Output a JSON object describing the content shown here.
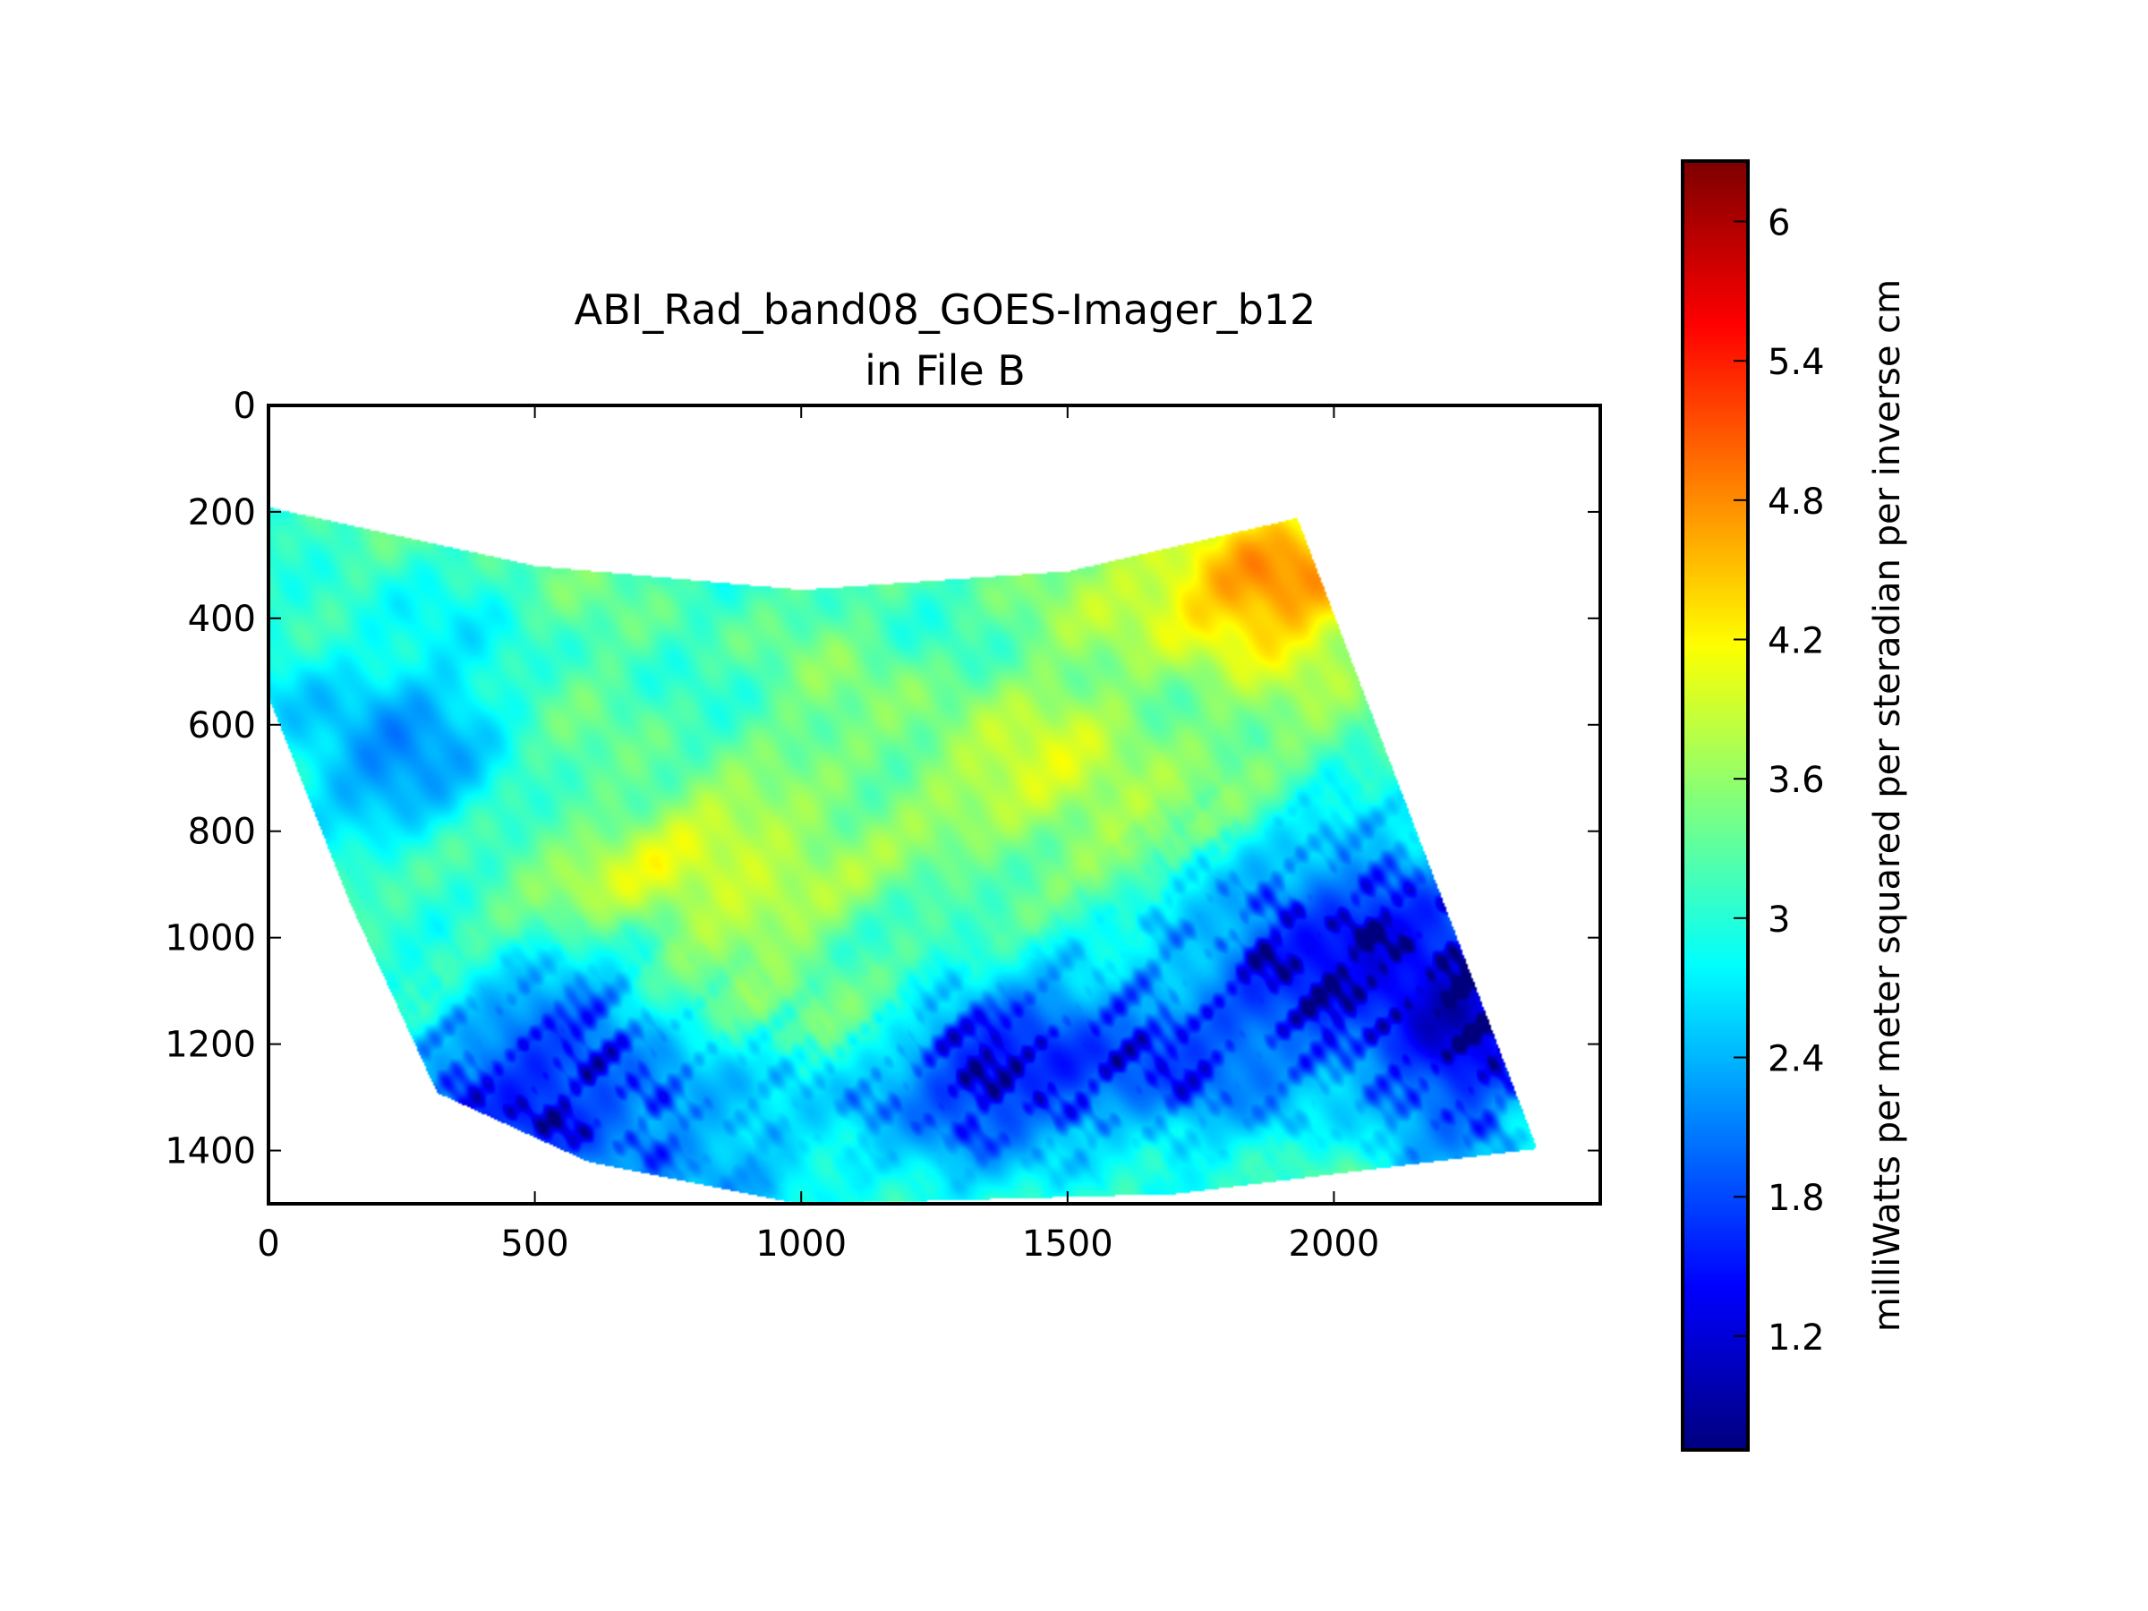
{
  "chart_data": {
    "type": "heatmap",
    "title": "ABI_Rad_band08_GOES-Imager_b12",
    "subtitle": "in File B",
    "xlabel": "",
    "ylabel": "",
    "xlim": [
      0,
      2500
    ],
    "ylim": [
      1500,
      0
    ],
    "y_inverted": true,
    "xticks": [
      0,
      500,
      1000,
      1500,
      2000
    ],
    "xtick_labels": [
      "0",
      "500",
      "1000",
      "1500",
      "2000"
    ],
    "yticks": [
      0,
      200,
      400,
      600,
      800,
      1000,
      1200,
      1400
    ],
    "ytick_labels": [
      "0",
      "200",
      "400",
      "600",
      "800",
      "1000",
      "1200",
      "1400"
    ],
    "grid": false,
    "colormap": "jet",
    "colorbar": {
      "label": "milliWatts per meter squared per steradian per inverse cm",
      "range": [
        0.71,
        6.26
      ],
      "ticks": [
        1.2,
        1.8,
        2.4,
        3,
        3.6,
        4.2,
        4.8,
        5.4,
        6
      ],
      "tick_labels": [
        "1.2",
        "1.8",
        "2.4",
        "3",
        "3.6",
        "4.2",
        "4.8",
        "5.4",
        "6"
      ]
    },
    "swath_outline": [
      [
        0,
        190
      ],
      [
        500,
        300
      ],
      [
        1000,
        345
      ],
      [
        1500,
        310
      ],
      [
        1930,
        210
      ],
      [
        2380,
        1395
      ],
      [
        1700,
        1480
      ],
      [
        1000,
        1500
      ],
      [
        600,
        1420
      ],
      [
        315,
        1290
      ],
      [
        150,
        930
      ],
      [
        0,
        550
      ]
    ]
  }
}
